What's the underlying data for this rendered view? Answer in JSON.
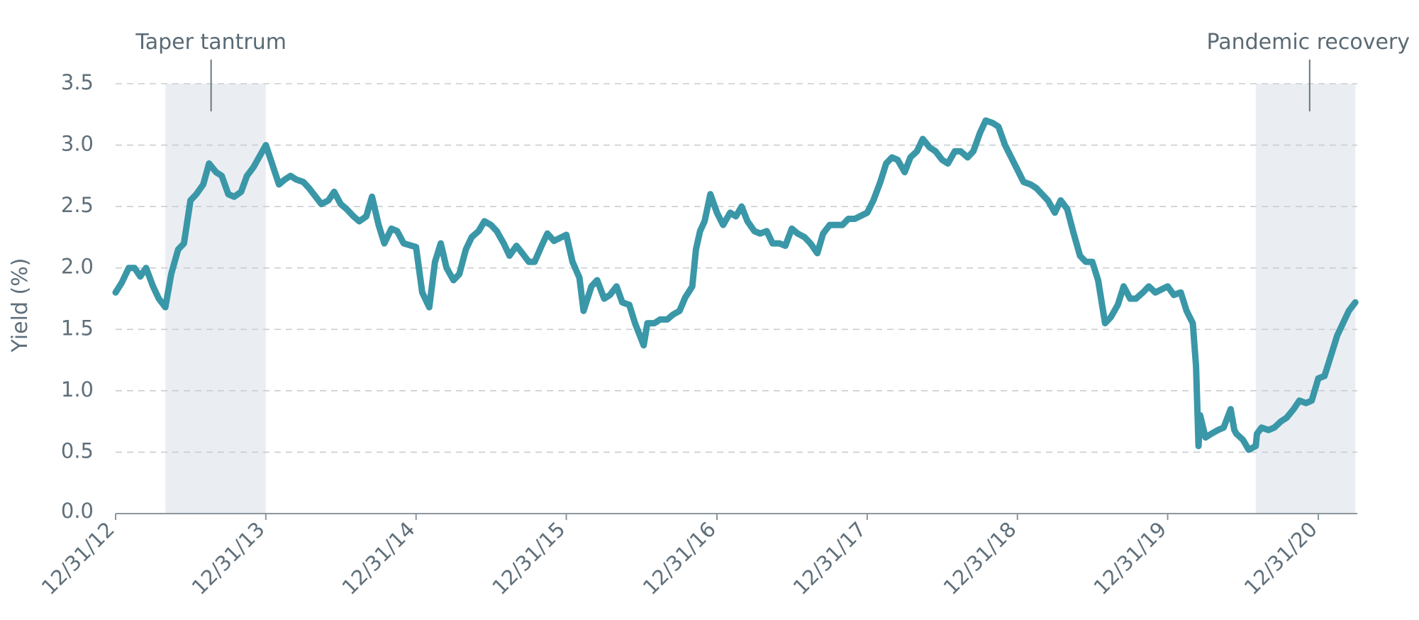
{
  "chart_data": {
    "type": "line",
    "title": "",
    "xlabel": "",
    "ylabel": "Yield (%)",
    "ylim": [
      0,
      3.5
    ],
    "y_ticks": [
      0,
      0.5,
      1,
      1.5,
      2,
      2.5,
      3,
      3.5
    ],
    "y_tick_labels": [
      "0.0",
      "0.5",
      "1.0",
      "1.5",
      "2.0",
      "2.5",
      "3.0",
      "3.5"
    ],
    "x_range": [
      "2012-12-31",
      "2021-03-31"
    ],
    "x_ticks": [
      "2012-12-31",
      "2013-12-31",
      "2014-12-31",
      "2015-12-31",
      "2016-12-31",
      "2017-12-31",
      "2018-12-31",
      "2019-12-31",
      "2020-12-31"
    ],
    "x_tick_labels": [
      "12/31/12",
      "12/31/13",
      "12/31/14",
      "12/31/15",
      "12/31/16",
      "12/31/17",
      "12/31/18",
      "12/31/19",
      "12/31/20"
    ],
    "grid": "horizontal dashed",
    "line_color": "#3a97a8",
    "shade_color": "#eaeef2",
    "annotations": [
      {
        "label": "Taper tantrum",
        "start": "2013-05-01",
        "end": "2013-12-31",
        "marker": "2013-08-20"
      },
      {
        "label": "Pandemic recovery",
        "start": "2020-08-01",
        "end": "2021-03-31",
        "marker": "2020-12-10"
      }
    ],
    "series": [
      {
        "x": [
          "2012-12-31",
          "2013-01-15",
          "2013-02-01",
          "2013-02-15",
          "2013-03-01",
          "2013-03-15",
          "2013-04-01",
          "2013-04-15",
          "2013-05-01",
          "2013-05-15",
          "2013-06-01",
          "2013-06-15",
          "2013-07-01",
          "2013-07-15",
          "2013-08-01",
          "2013-08-15",
          "2013-09-01",
          "2013-09-15",
          "2013-10-01",
          "2013-10-15",
          "2013-11-01",
          "2013-11-15",
          "2013-12-01",
          "2013-12-31",
          "2014-01-15",
          "2014-02-01",
          "2014-02-15",
          "2014-03-01",
          "2014-03-15",
          "2014-04-01",
          "2014-04-15",
          "2014-05-01",
          "2014-05-15",
          "2014-06-01",
          "2014-06-15",
          "2014-07-01",
          "2014-07-15",
          "2014-08-01",
          "2014-08-15",
          "2014-09-01",
          "2014-09-15",
          "2014-10-01",
          "2014-10-15",
          "2014-11-01",
          "2014-11-15",
          "2014-12-01",
          "2014-12-31",
          "2015-01-15",
          "2015-02-01",
          "2015-02-15",
          "2015-03-01",
          "2015-03-15",
          "2015-04-01",
          "2015-04-15",
          "2015-05-01",
          "2015-05-15",
          "2015-06-01",
          "2015-06-15",
          "2015-07-01",
          "2015-07-15",
          "2015-08-01",
          "2015-08-15",
          "2015-09-01",
          "2015-09-15",
          "2015-10-01",
          "2015-10-15",
          "2015-11-01",
          "2015-11-15",
          "2015-12-01",
          "2015-12-31",
          "2016-01-15",
          "2016-02-01",
          "2016-02-11",
          "2016-03-01",
          "2016-03-15",
          "2016-04-01",
          "2016-04-15",
          "2016-05-01",
          "2016-05-15",
          "2016-06-01",
          "2016-06-15",
          "2016-07-06",
          "2016-07-15",
          "2016-08-01",
          "2016-08-15",
          "2016-09-01",
          "2016-09-15",
          "2016-10-01",
          "2016-10-15",
          "2016-11-01",
          "2016-11-10",
          "2016-11-20",
          "2016-12-01",
          "2016-12-15",
          "2016-12-31",
          "2017-01-15",
          "2017-02-01",
          "2017-02-15",
          "2017-03-01",
          "2017-03-15",
          "2017-04-01",
          "2017-04-15",
          "2017-05-01",
          "2017-05-15",
          "2017-06-01",
          "2017-06-15",
          "2017-07-01",
          "2017-07-15",
          "2017-08-01",
          "2017-08-15",
          "2017-09-01",
          "2017-09-15",
          "2017-10-01",
          "2017-10-15",
          "2017-11-01",
          "2017-11-15",
          "2017-12-01",
          "2017-12-31",
          "2018-01-15",
          "2018-02-01",
          "2018-02-15",
          "2018-03-01",
          "2018-03-15",
          "2018-04-01",
          "2018-04-15",
          "2018-05-01",
          "2018-05-15",
          "2018-06-01",
          "2018-06-15",
          "2018-07-01",
          "2018-07-15",
          "2018-08-01",
          "2018-08-15",
          "2018-09-01",
          "2018-09-15",
          "2018-10-01",
          "2018-10-15",
          "2018-11-01",
          "2018-11-15",
          "2018-12-01",
          "2018-12-31",
          "2019-01-15",
          "2019-02-01",
          "2019-02-15",
          "2019-03-01",
          "2019-03-15",
          "2019-04-01",
          "2019-04-15",
          "2019-05-01",
          "2019-05-15",
          "2019-06-01",
          "2019-06-15",
          "2019-07-01",
          "2019-07-15",
          "2019-08-01",
          "2019-08-15",
          "2019-09-01",
          "2019-09-15",
          "2019-10-01",
          "2019-10-15",
          "2019-11-01",
          "2019-11-15",
          "2019-12-01",
          "2019-12-31",
          "2020-01-15",
          "2020-02-01",
          "2020-02-15",
          "2020-03-01",
          "2020-03-09",
          "2020-03-15",
          "2020-03-19",
          "2020-04-01",
          "2020-04-15",
          "2020-05-01",
          "2020-05-15",
          "2020-06-01",
          "2020-06-10",
          "2020-06-15",
          "2020-07-01",
          "2020-07-15",
          "2020-08-01",
          "2020-08-04",
          "2020-08-15",
          "2020-09-01",
          "2020-09-15",
          "2020-10-01",
          "2020-10-15",
          "2020-11-01",
          "2020-11-15",
          "2020-12-01",
          "2020-12-15",
          "2020-12-31",
          "2021-01-15",
          "2021-02-01",
          "2021-02-15",
          "2021-03-01",
          "2021-03-15",
          "2021-03-31"
        ],
        "y": [
          1.8,
          1.88,
          2.0,
          2.0,
          1.93,
          2.0,
          1.85,
          1.75,
          1.68,
          1.95,
          2.15,
          2.2,
          2.55,
          2.6,
          2.68,
          2.85,
          2.78,
          2.75,
          2.6,
          2.58,
          2.62,
          2.75,
          2.82,
          3.0,
          2.85,
          2.68,
          2.72,
          2.75,
          2.72,
          2.7,
          2.65,
          2.58,
          2.52,
          2.55,
          2.62,
          2.52,
          2.48,
          2.42,
          2.38,
          2.42,
          2.58,
          2.35,
          2.2,
          2.32,
          2.3,
          2.2,
          2.17,
          1.8,
          1.68,
          2.05,
          2.2,
          2.0,
          1.9,
          1.95,
          2.15,
          2.25,
          2.3,
          2.38,
          2.35,
          2.3,
          2.2,
          2.1,
          2.18,
          2.12,
          2.05,
          2.05,
          2.18,
          2.28,
          2.22,
          2.27,
          2.05,
          1.92,
          1.65,
          1.85,
          1.9,
          1.75,
          1.78,
          1.85,
          1.72,
          1.7,
          1.55,
          1.37,
          1.55,
          1.55,
          1.58,
          1.58,
          1.62,
          1.65,
          1.76,
          1.85,
          2.15,
          2.3,
          2.38,
          2.6,
          2.45,
          2.35,
          2.45,
          2.42,
          2.5,
          2.38,
          2.3,
          2.28,
          2.3,
          2.2,
          2.2,
          2.18,
          2.32,
          2.28,
          2.25,
          2.2,
          2.12,
          2.28,
          2.35,
          2.35,
          2.35,
          2.4,
          2.4,
          2.45,
          2.55,
          2.7,
          2.85,
          2.9,
          2.88,
          2.78,
          2.9,
          2.95,
          3.05,
          2.98,
          2.95,
          2.88,
          2.85,
          2.95,
          2.95,
          2.9,
          2.95,
          3.1,
          3.2,
          3.18,
          3.15,
          3.0,
          2.8,
          2.7,
          2.68,
          2.65,
          2.6,
          2.55,
          2.45,
          2.55,
          2.48,
          2.3,
          2.1,
          2.05,
          2.05,
          1.9,
          1.55,
          1.6,
          1.7,
          1.85,
          1.75,
          1.75,
          1.8,
          1.85,
          1.8,
          1.85,
          1.78,
          1.8,
          1.65,
          1.55,
          1.2,
          0.55,
          0.8,
          0.62,
          0.65,
          0.68,
          0.7,
          0.85,
          0.68,
          0.65,
          0.6,
          0.52,
          0.55,
          0.65,
          0.7,
          0.68,
          0.7,
          0.75,
          0.78,
          0.85,
          0.92,
          0.9,
          0.92,
          1.1,
          1.12,
          1.3,
          1.45,
          1.55,
          1.65,
          1.72
        ]
      }
    ]
  }
}
